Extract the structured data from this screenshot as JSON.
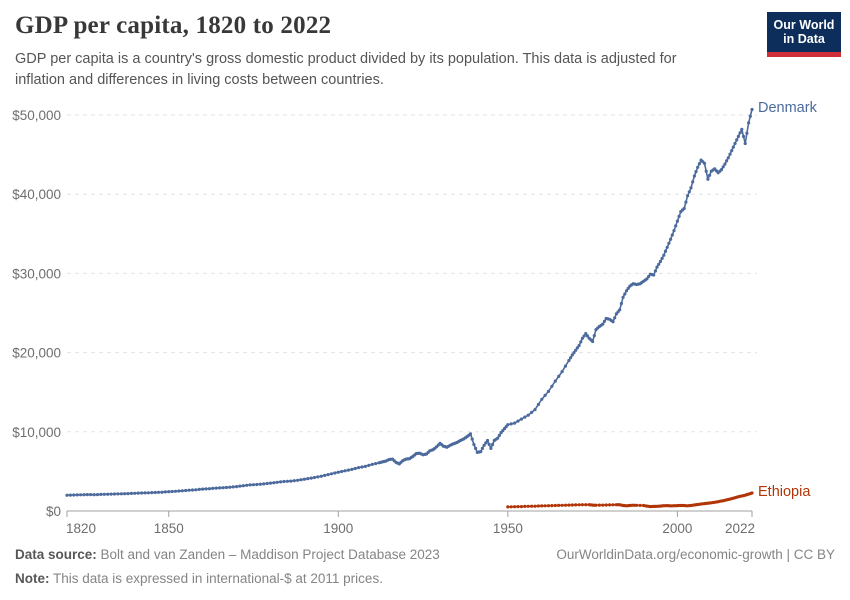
{
  "header": {
    "title": "GDP per capita, 1820 to 2022",
    "subtitle": "GDP per capita is a country's gross domestic product divided by its population. This data is adjusted for inflation and differences in living costs between countries.",
    "logo": {
      "line1": "Our World",
      "line2": "in Data",
      "bg_color": "#0d2e5a",
      "bar_color": "#cf2f36"
    }
  },
  "chart_data": {
    "type": "line",
    "title": "GDP per capita, 1820 to 2022",
    "xlabel": "",
    "ylabel": "",
    "x_range": [
      1820,
      2022
    ],
    "y_range": [
      0,
      50000
    ],
    "grid": "horizontal-dashed",
    "legend_position": "end-of-line",
    "grid_color": "#e3e3e3",
    "axis_color": "#a1a1a1",
    "xticks": [
      {
        "value": 1820,
        "label": "1820"
      },
      {
        "value": 1850,
        "label": "1850"
      },
      {
        "value": 1900,
        "label": "1900"
      },
      {
        "value": 1950,
        "label": "1950"
      },
      {
        "value": 2000,
        "label": "2000"
      },
      {
        "value": 2022,
        "label": "2022"
      }
    ],
    "yticks": [
      {
        "value": 0,
        "label": "$0"
      },
      {
        "value": 10000,
        "label": "$10,000"
      },
      {
        "value": 20000,
        "label": "$20,000"
      },
      {
        "value": 30000,
        "label": "$30,000"
      },
      {
        "value": 40000,
        "label": "$40,000"
      },
      {
        "value": 50000,
        "label": "$50,000"
      }
    ],
    "series": [
      {
        "name": "Denmark",
        "color": "#4C6A9C",
        "points": [
          [
            1820,
            2000
          ],
          [
            1822,
            2020
          ],
          [
            1824,
            2050
          ],
          [
            1826,
            2070
          ],
          [
            1828,
            2060
          ],
          [
            1830,
            2090
          ],
          [
            1832,
            2120
          ],
          [
            1834,
            2150
          ],
          [
            1836,
            2170
          ],
          [
            1838,
            2200
          ],
          [
            1840,
            2240
          ],
          [
            1842,
            2270
          ],
          [
            1844,
            2300
          ],
          [
            1846,
            2340
          ],
          [
            1848,
            2380
          ],
          [
            1850,
            2440
          ],
          [
            1852,
            2490
          ],
          [
            1854,
            2550
          ],
          [
            1856,
            2630
          ],
          [
            1858,
            2680
          ],
          [
            1860,
            2770
          ],
          [
            1862,
            2820
          ],
          [
            1864,
            2890
          ],
          [
            1866,
            2940
          ],
          [
            1868,
            3000
          ],
          [
            1870,
            3080
          ],
          [
            1872,
            3200
          ],
          [
            1874,
            3290
          ],
          [
            1876,
            3340
          ],
          [
            1878,
            3420
          ],
          [
            1880,
            3520
          ],
          [
            1882,
            3620
          ],
          [
            1884,
            3720
          ],
          [
            1886,
            3780
          ],
          [
            1888,
            3880
          ],
          [
            1890,
            4020
          ],
          [
            1892,
            4150
          ],
          [
            1894,
            4300
          ],
          [
            1896,
            4500
          ],
          [
            1898,
            4700
          ],
          [
            1900,
            4900
          ],
          [
            1902,
            5080
          ],
          [
            1904,
            5250
          ],
          [
            1906,
            5480
          ],
          [
            1908,
            5630
          ],
          [
            1910,
            5880
          ],
          [
            1912,
            6080
          ],
          [
            1913,
            6200
          ],
          [
            1914,
            6300
          ],
          [
            1915,
            6500
          ],
          [
            1916,
            6550
          ],
          [
            1917,
            6150
          ],
          [
            1918,
            5950
          ],
          [
            1919,
            6350
          ],
          [
            1920,
            6550
          ],
          [
            1921,
            6600
          ],
          [
            1922,
            6900
          ],
          [
            1923,
            7250
          ],
          [
            1924,
            7300
          ],
          [
            1925,
            7100
          ],
          [
            1926,
            7200
          ],
          [
            1927,
            7600
          ],
          [
            1928,
            7750
          ],
          [
            1929,
            8100
          ],
          [
            1930,
            8550
          ],
          [
            1931,
            8200
          ],
          [
            1932,
            8050
          ],
          [
            1933,
            8300
          ],
          [
            1934,
            8500
          ],
          [
            1935,
            8650
          ],
          [
            1936,
            8900
          ],
          [
            1937,
            9100
          ],
          [
            1938,
            9400
          ],
          [
            1939,
            9750
          ],
          [
            1940,
            8400
          ],
          [
            1941,
            7400
          ],
          [
            1942,
            7500
          ],
          [
            1943,
            8300
          ],
          [
            1944,
            8900
          ],
          [
            1945,
            7900
          ],
          [
            1946,
            8900
          ],
          [
            1947,
            9200
          ],
          [
            1948,
            9900
          ],
          [
            1949,
            10400
          ],
          [
            1950,
            10900
          ],
          [
            1952,
            11100
          ],
          [
            1954,
            11600
          ],
          [
            1956,
            12100
          ],
          [
            1958,
            12800
          ],
          [
            1960,
            14100
          ],
          [
            1962,
            15100
          ],
          [
            1964,
            16400
          ],
          [
            1966,
            17600
          ],
          [
            1968,
            19000
          ],
          [
            1969,
            19700
          ],
          [
            1970,
            20300
          ],
          [
            1971,
            20900
          ],
          [
            1972,
            21800
          ],
          [
            1973,
            22400
          ],
          [
            1974,
            21800
          ],
          [
            1975,
            21400
          ],
          [
            1976,
            22900
          ],
          [
            1977,
            23300
          ],
          [
            1978,
            23600
          ],
          [
            1979,
            24300
          ],
          [
            1980,
            24200
          ],
          [
            1981,
            23900
          ],
          [
            1982,
            24900
          ],
          [
            1983,
            25400
          ],
          [
            1984,
            27000
          ],
          [
            1985,
            27800
          ],
          [
            1986,
            28400
          ],
          [
            1987,
            28700
          ],
          [
            1988,
            28600
          ],
          [
            1989,
            28700
          ],
          [
            1990,
            29000
          ],
          [
            1991,
            29300
          ],
          [
            1992,
            29900
          ],
          [
            1993,
            29800
          ],
          [
            1994,
            30800
          ],
          [
            1995,
            31500
          ],
          [
            1996,
            32300
          ],
          [
            1997,
            33300
          ],
          [
            1998,
            34300
          ],
          [
            1999,
            35400
          ],
          [
            2000,
            36600
          ],
          [
            2001,
            37800
          ],
          [
            2002,
            38200
          ],
          [
            2003,
            39800
          ],
          [
            2004,
            40800
          ],
          [
            2005,
            42300
          ],
          [
            2006,
            43400
          ],
          [
            2007,
            44300
          ],
          [
            2008,
            43900
          ],
          [
            2009,
            41900
          ],
          [
            2010,
            42900
          ],
          [
            2011,
            43200
          ],
          [
            2012,
            42700
          ],
          [
            2013,
            43100
          ],
          [
            2014,
            43800
          ],
          [
            2015,
            44600
          ],
          [
            2016,
            45500
          ],
          [
            2017,
            46400
          ],
          [
            2018,
            47300
          ],
          [
            2019,
            48200
          ],
          [
            2020,
            46400
          ],
          [
            2021,
            49000
          ],
          [
            2022,
            50700
          ]
        ]
      },
      {
        "name": "Ethiopia",
        "color": "#B13507",
        "points": [
          [
            1950,
            520
          ],
          [
            1952,
            540
          ],
          [
            1954,
            560
          ],
          [
            1956,
            590
          ],
          [
            1958,
            610
          ],
          [
            1960,
            640
          ],
          [
            1962,
            670
          ],
          [
            1964,
            700
          ],
          [
            1966,
            720
          ],
          [
            1968,
            740
          ],
          [
            1970,
            770
          ],
          [
            1972,
            790
          ],
          [
            1974,
            800
          ],
          [
            1975,
            740
          ],
          [
            1976,
            730
          ],
          [
            1978,
            750
          ],
          [
            1980,
            770
          ],
          [
            1982,
            790
          ],
          [
            1983,
            800
          ],
          [
            1984,
            700
          ],
          [
            1985,
            660
          ],
          [
            1986,
            700
          ],
          [
            1987,
            730
          ],
          [
            1988,
            720
          ],
          [
            1990,
            700
          ],
          [
            1991,
            620
          ],
          [
            1992,
            560
          ],
          [
            1993,
            580
          ],
          [
            1994,
            590
          ],
          [
            1995,
            620
          ],
          [
            1996,
            670
          ],
          [
            1997,
            680
          ],
          [
            1998,
            650
          ],
          [
            1999,
            670
          ],
          [
            2000,
            680
          ],
          [
            2001,
            700
          ],
          [
            2002,
            690
          ],
          [
            2003,
            660
          ],
          [
            2004,
            700
          ],
          [
            2005,
            760
          ],
          [
            2006,
            820
          ],
          [
            2007,
            880
          ],
          [
            2008,
            930
          ],
          [
            2009,
            980
          ],
          [
            2010,
            1040
          ],
          [
            2011,
            1100
          ],
          [
            2012,
            1180
          ],
          [
            2013,
            1260
          ],
          [
            2014,
            1350
          ],
          [
            2015,
            1450
          ],
          [
            2016,
            1560
          ],
          [
            2017,
            1680
          ],
          [
            2018,
            1800
          ],
          [
            2019,
            1900
          ],
          [
            2020,
            2000
          ],
          [
            2021,
            2130
          ],
          [
            2022,
            2270
          ]
        ]
      }
    ]
  },
  "footer": {
    "source_label": "Data source:",
    "source_text": " Bolt and van Zanden – Maddison Project Database 2023",
    "note_label": "Note:",
    "note_text": " This data is expressed in international-$ at 2011 prices.",
    "right_text": "OurWorldinData.org/economic-growth | CC BY"
  }
}
